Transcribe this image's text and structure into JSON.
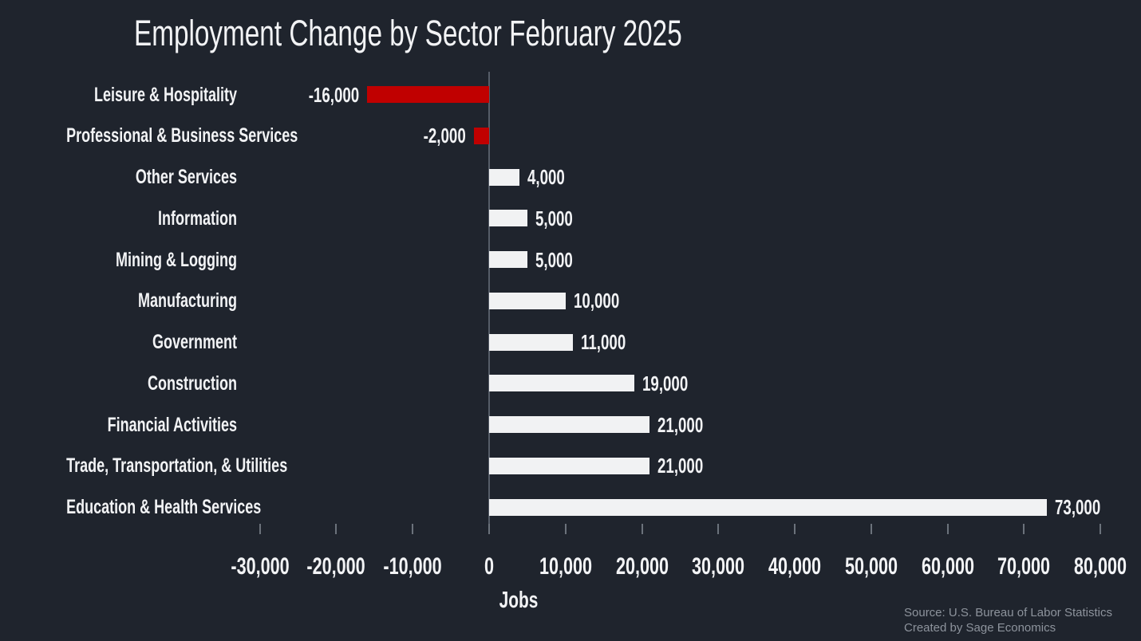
{
  "page": {
    "title": "Employment Change by Sector February 2025"
  },
  "chart_data": {
    "type": "bar",
    "orientation": "horizontal",
    "title": "Employment Change by Sector February 2025",
    "xlabel": "Jobs",
    "categories": [
      "Leisure & Hospitality",
      "Professional & Business Services",
      "Other Services",
      "Information",
      "Mining & Logging",
      "Manufacturing",
      "Government",
      "Construction",
      "Financial Activities",
      "Trade, Transportation, & Utilities",
      "Education & Health Services"
    ],
    "values": [
      -16000,
      -2000,
      4000,
      5000,
      5000,
      10000,
      11000,
      19000,
      21000,
      21000,
      73000
    ],
    "value_labels": [
      "-16,000",
      "-2,000",
      "4,000",
      "5,000",
      "5,000",
      "10,000",
      "11,000",
      "19,000",
      "21,000",
      "21,000",
      "73,000"
    ],
    "xlim": [
      -30000,
      80000
    ],
    "x_ticks": [
      -30000,
      -20000,
      -10000,
      0,
      10000,
      20000,
      30000,
      40000,
      50000,
      60000,
      70000,
      80000
    ],
    "x_tick_labels": [
      "-30,000",
      "-20,000",
      "-10,000",
      "0",
      "10,000",
      "20,000",
      "30,000",
      "40,000",
      "50,000",
      "60,000",
      "70,000",
      "80,000"
    ],
    "grid": false,
    "legend_position": "none",
    "colors": {
      "positive_bar": "#f1f2f3",
      "negative_bar": "#c00000"
    }
  },
  "footer": {
    "source_line": "Source: U.S. Bureau of Labor Statistics",
    "credit_line": "Created by Sage Economics"
  },
  "theme": {
    "background": "#1f242d",
    "text": "#f2f3f5",
    "muted_text": "#8d939c",
    "axis_line": "#565d68",
    "tick": "#6b727b"
  }
}
